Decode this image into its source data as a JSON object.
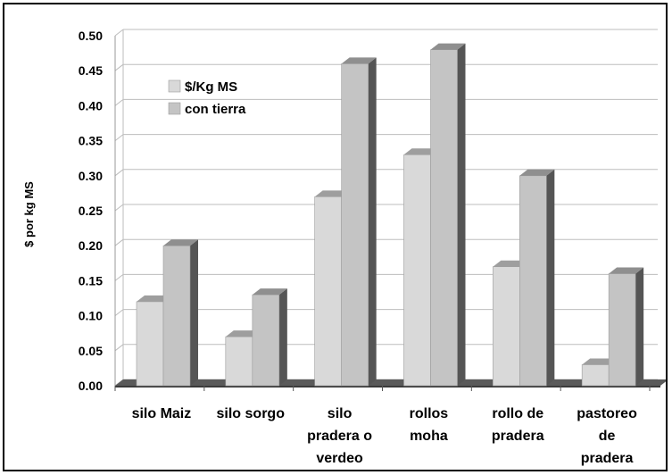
{
  "chart_data": {
    "type": "bar",
    "ylabel": "$ por kg MS",
    "ylim": [
      0,
      0.5
    ],
    "yticks": [
      "0.00",
      "0.05",
      "0.10",
      "0.15",
      "0.20",
      "0.25",
      "0.30",
      "0.35",
      "0.40",
      "0.45",
      "0.50"
    ],
    "categories": [
      [
        "silo Maiz"
      ],
      [
        "silo sorgo"
      ],
      [
        "silo",
        "pradera o",
        "verdeo"
      ],
      [
        "rollos",
        "moha"
      ],
      [
        "rollo de",
        "pradera"
      ],
      [
        "pastoreo",
        "de",
        "pradera"
      ]
    ],
    "series": [
      {
        "name": "$/Kg MS",
        "values": [
          0.12,
          0.07,
          0.27,
          0.33,
          0.17,
          0.03
        ]
      },
      {
        "name": "con tierra",
        "values": [
          0.2,
          0.13,
          0.46,
          0.48,
          0.3,
          0.16
        ]
      }
    ],
    "legend_position": "top-left",
    "grid": true,
    "style": "3d",
    "colors": {
      "series1_front": "#d9d9d9",
      "series1_top": "#9e9e9e",
      "series1_side": "#6e6e6e",
      "series2_front": "#c4c4c4",
      "series2_top": "#8f8f8f",
      "series2_side": "#555555",
      "floor": "#5a5a5a",
      "grid": "#bdbdbd"
    }
  }
}
